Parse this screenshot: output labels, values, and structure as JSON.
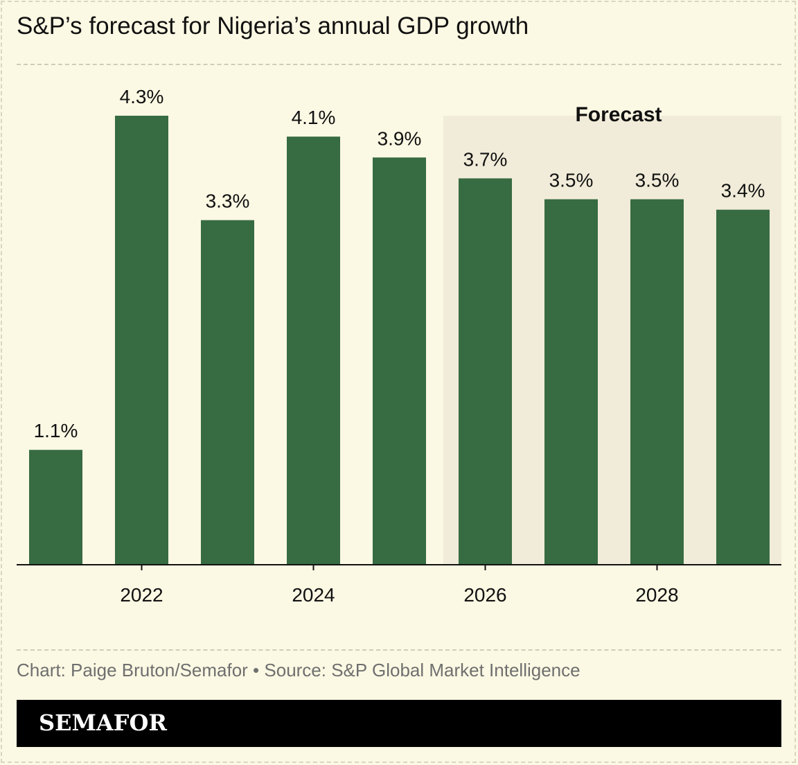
{
  "title": "S&P’s forecast for Nigeria’s annual GDP growth",
  "credit": "Chart: Paige Bruton/Semafor • Source: S&P Global Market Intelligence",
  "brand": "SEMAFOR",
  "colors": {
    "bar": "#376b41",
    "background": "#fbf8e3",
    "forecast_band": "#f1ecd9",
    "text": "#111111",
    "credit": "#6f6f6f"
  },
  "chart_data": {
    "type": "bar",
    "categories": [
      "2021",
      "2022",
      "2023",
      "2024",
      "2025",
      "2026",
      "2027",
      "2028",
      "2029"
    ],
    "values": [
      1.1,
      4.3,
      3.3,
      4.1,
      3.9,
      3.7,
      3.5,
      3.5,
      3.4
    ],
    "value_labels": [
      "1.1%",
      "4.3%",
      "3.3%",
      "4.1%",
      "3.9%",
      "3.7%",
      "3.5%",
      "3.5%",
      "3.4%"
    ],
    "tick_labels": [
      "2022",
      "2024",
      "2026",
      "2028"
    ],
    "annotation": {
      "text": "Forecast",
      "from": "2026",
      "to": "2029"
    },
    "ylim": [
      0,
      4.3
    ],
    "grid": false,
    "legend": "none"
  }
}
